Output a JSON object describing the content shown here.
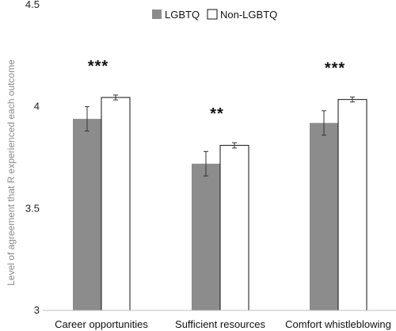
{
  "chart_data": {
    "type": "bar",
    "ylabel": "Level of agreement that R experienced each outcome",
    "ylim": [
      3,
      4.5
    ],
    "yticks": [
      3,
      3.5,
      4,
      4.5
    ],
    "ytick_labels": [
      "3",
      "3.5",
      "4",
      "4.5"
    ],
    "categories": [
      "Career opportunities",
      "Sufficient resources",
      "Comfort whistleblowing"
    ],
    "series": [
      {
        "name": "LGBTQ",
        "color": "#8c8c8c",
        "fill": "#8c8c8c",
        "values": [
          3.94,
          3.72,
          3.92
        ],
        "errors": [
          0.06,
          0.06,
          0.06
        ]
      },
      {
        "name": "Non-LGBTQ",
        "color": "#ffffff",
        "fill": "#ffffff",
        "values": [
          4.045,
          3.81,
          4.035
        ],
        "errors": [
          0.012,
          0.013,
          0.012
        ]
      }
    ],
    "significance": [
      "***",
      "**",
      "***"
    ],
    "legend_position": "top-center",
    "grid": false
  }
}
